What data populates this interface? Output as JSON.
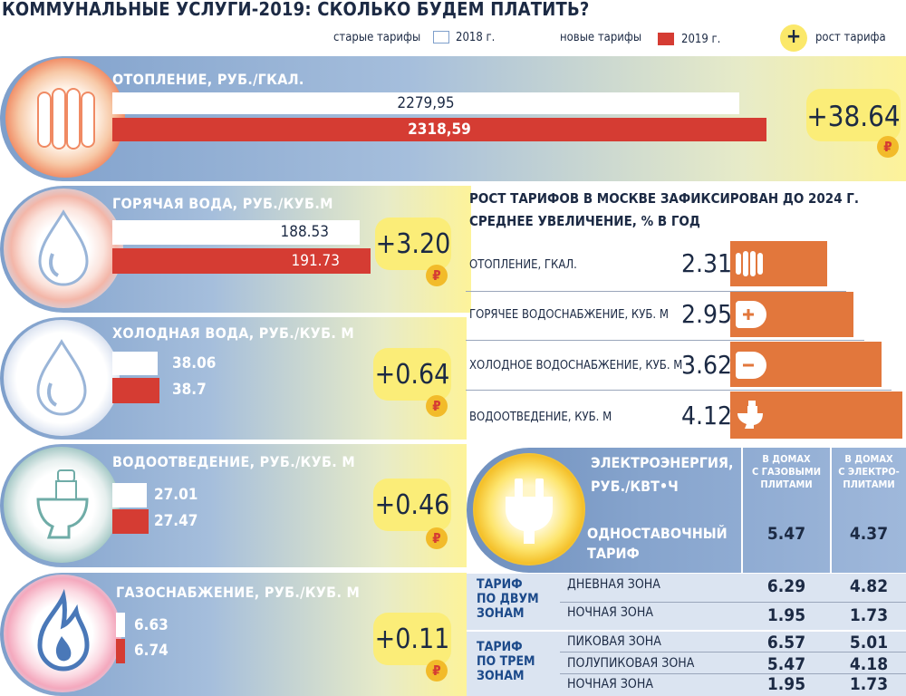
{
  "title": "КОММУНАЛЬНЫЕ УСЛУГИ-2019: СКОЛЬКО БУДЕМ ПЛАТИТЬ?",
  "legend": {
    "old_label": "старые тарифы",
    "old_year": "2018 г.",
    "new_label": "новые тарифы",
    "new_year": "2019 г.",
    "plus_symbol": "+",
    "growth_label": "рост тарифа"
  },
  "colors": {
    "old": "#ffffff",
    "new": "#d53c33",
    "accent": "#fbed78",
    "moscow_bar": "#e2773c"
  },
  "chart_data": [
    {
      "type": "bar",
      "categories": [
        "ОТОПЛЕНИЕ, РУБ./ГКАЛ.",
        "ГОРЯЧАЯ ВОДА, РУБ./КУБ.М",
        "ХОЛОДНАЯ ВОДА, РУБ./КУБ. М",
        "ВОДООТВЕДЕНИЕ, РУБ./КУБ. М",
        "ГАЗОСНАБЖЕНИЕ, РУБ./КУБ. М"
      ],
      "series": [
        {
          "name": "старые тарифы 2018 г.",
          "values": [
            2279.95,
            188.53,
            38.06,
            27.01,
            6.63
          ],
          "labels": [
            "2279,95",
            "188.53",
            "38.06",
            "27.01",
            "6.63"
          ]
        },
        {
          "name": "новые тарифы 2019 г.",
          "values": [
            2318.59,
            191.73,
            38.7,
            27.47,
            6.74
          ],
          "labels": [
            "2318,59",
            "191.73",
            "38.7",
            "27.47",
            "6.74"
          ]
        }
      ],
      "growth": [
        "+38.64",
        "+3.20",
        "+0.64",
        "+0.46",
        "+0.11"
      ],
      "currency_symbol": "₽"
    },
    {
      "type": "bar",
      "title": "РОСТ ТАРИФОВ В МОСКВЕ ЗАФИКСИРОВАН ДО 2024 Г.",
      "subtitle": "СРЕДНЕЕ УВЕЛИЧЕНИЕ, % В ГОД",
      "categories": [
        "ОТОПЛЕНИЕ, ГКАЛ.",
        "ГОРЯЧЕЕ ВОДОСНАБЖЕНИЕ, КУБ. М",
        "ХОЛОДНОЕ ВОДОСНАБЖЕНИЕ, КУБ. М",
        "ВОДООТВЕДЕНИЕ, КУБ. М"
      ],
      "values": [
        2.31,
        2.95,
        3.62,
        4.12
      ],
      "labels": [
        "2.31",
        "2.95",
        "3.62",
        "4.12"
      ]
    },
    {
      "type": "table",
      "title_line1": "ЭЛЕКТРОЭНЕРГИЯ,",
      "title_line2": "РУБ./КВТ•Ч",
      "columns": [
        "В ДОМАХ С ГАЗОВЫМИ ПЛИТАМИ",
        "В ДОМАХ С ЭЛЕКТРО- ПЛИТАМИ"
      ],
      "col1_lines": [
        "В ДОМАХ",
        "С ГАЗОВЫМИ",
        "ПЛИТАМИ"
      ],
      "col2_lines": [
        "В ДОМАХ",
        "С ЭЛЕКТРО-",
        "ПЛИТАМИ"
      ],
      "single_rate": {
        "line1": "ОДНОСТАВОЧНЫЙ",
        "line2": "ТАРИФ",
        "gas": "5.47",
        "electric": "4.37"
      },
      "two_zone": {
        "label_lines": [
          "ТАРИФ",
          "ПО ДВУМ",
          "ЗОНАМ"
        ],
        "rows": [
          {
            "zone": "ДНЕВНАЯ ЗОНА",
            "gas": "6.29",
            "electric": "4.82"
          },
          {
            "zone": "НОЧНАЯ ЗОНА",
            "gas": "1.95",
            "electric": "1.73"
          }
        ]
      },
      "three_zone": {
        "label_lines": [
          "ТАРИФ",
          "ПО ТРЕМ",
          "ЗОНАМ"
        ],
        "rows": [
          {
            "zone": "ПИКОВАЯ ЗОНА",
            "gas": "6.57",
            "electric": "5.01"
          },
          {
            "zone": "ПОЛУПИКОВАЯ ЗОНА",
            "gas": "5.47",
            "electric": "4.18"
          },
          {
            "zone": "НОЧНАЯ ЗОНА",
            "gas": "1.95",
            "electric": "1.73"
          }
        ]
      }
    }
  ],
  "icons": {
    "heating": "radiator-icon",
    "hot_water": "water-drop-icon",
    "cold_water": "water-drop-icon",
    "sewage": "toilet-icon",
    "gas": "gas-flame-icon",
    "electricity": "plug-icon",
    "currency": "ruble-icon"
  }
}
